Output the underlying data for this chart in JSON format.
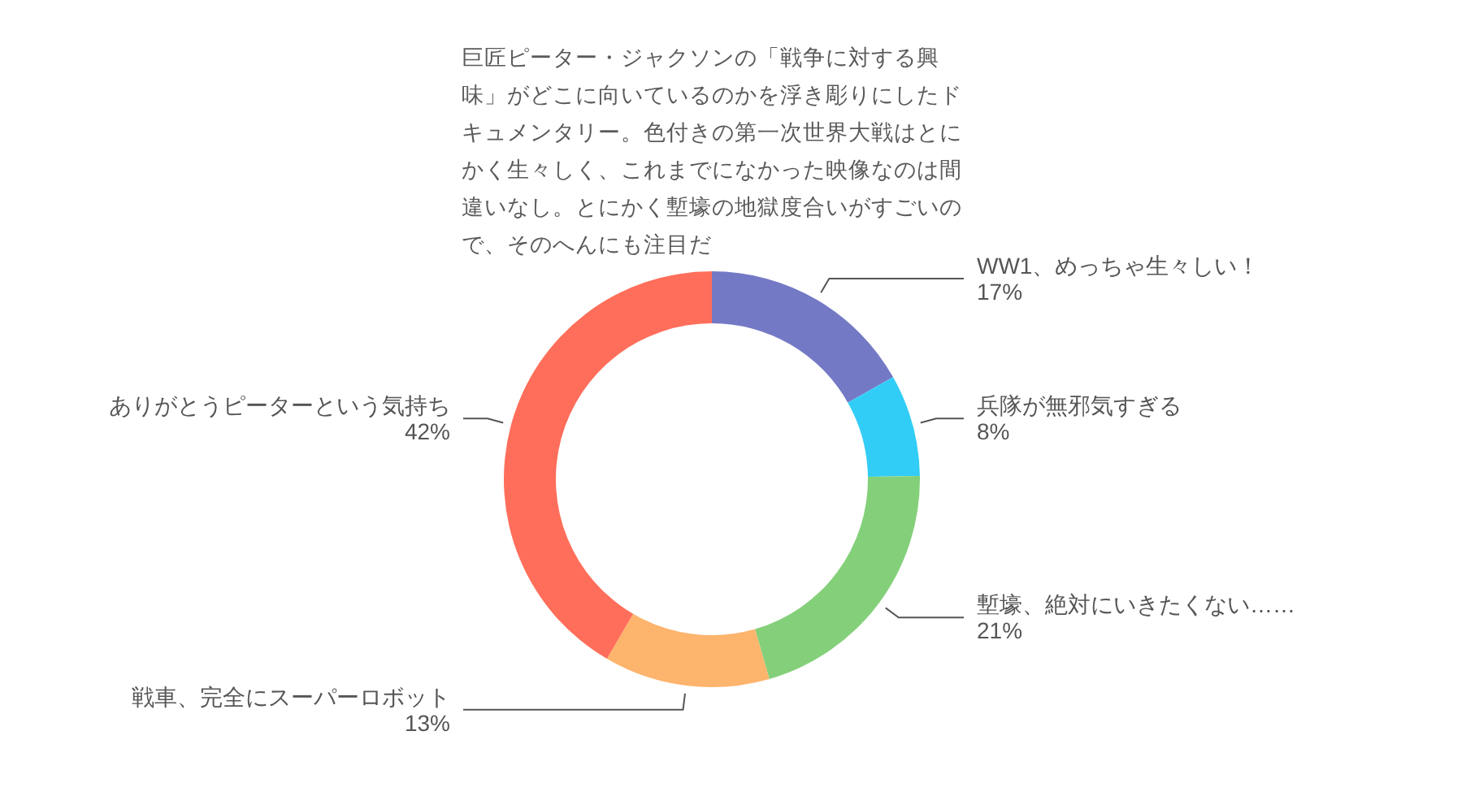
{
  "chart_data": {
    "type": "donut",
    "subtitle": "巨匠ピーター・ジャクソンの「戦争に対する興味」がどこに向いているのかを浮き彫りにしたドキュメンタリー。色付きの第一次世界大戦はとにかく生々しく、これまでになかった映像なのは間違いなし。とにかく塹壕の地獄度合いがすごいので、そのへんにも注目だ",
    "categories": [
      "WW1、めっちゃ生々しい！",
      "兵隊が無邪気すぎる",
      "塹壕、絶対にいきたくない……",
      "戦車、完全にスーパーロボット",
      "ありがとうピーターという気持ち"
    ],
    "values": [
      17,
      8,
      21,
      13,
      42
    ],
    "value_labels": [
      "17%",
      "8%",
      "21%",
      "13%",
      "42%"
    ],
    "colors": [
      "#7479c6",
      "#32cdf6",
      "#84d07a",
      "#fdb46c",
      "#ff6e5a"
    ]
  }
}
